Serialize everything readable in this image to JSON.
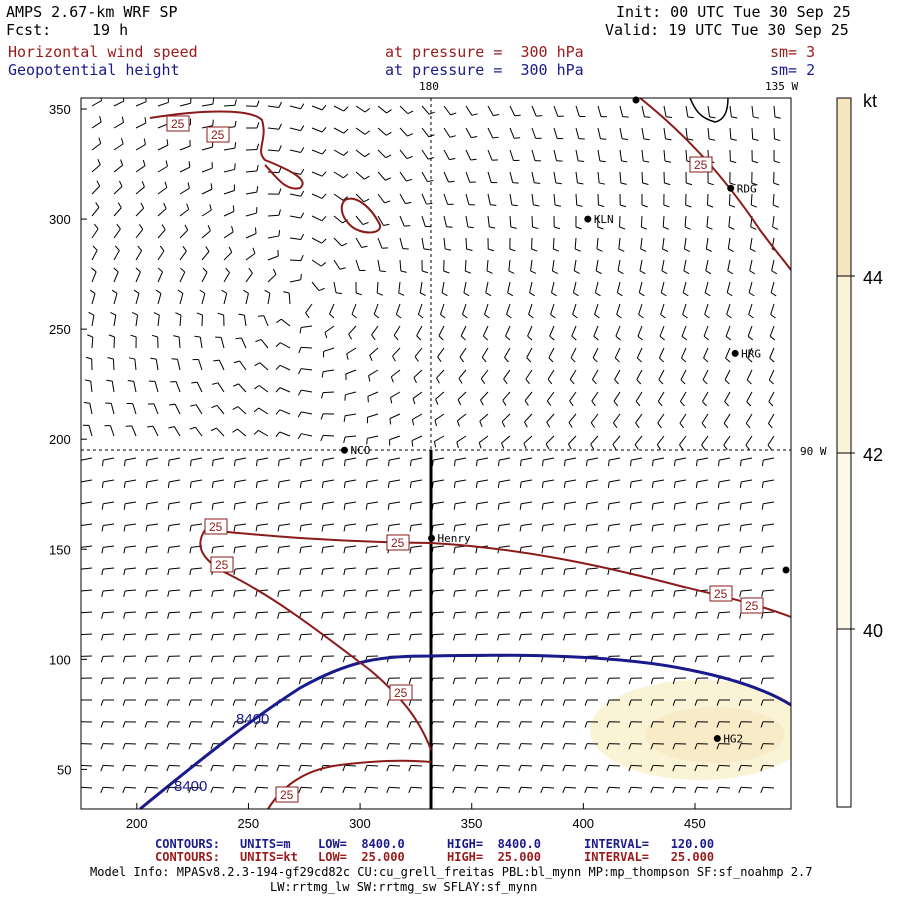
{
  "header": {
    "model": "AMPS 2.67-km WRF SP",
    "fcst_label": "Fcst:",
    "fcst_value": "19 h",
    "init": "Init: 00 UTC Tue 30 Sep 25",
    "valid": "Valid: 19 UTC Tue 30 Sep 25",
    "field1_name": "Horizontal wind speed",
    "field1_level": "at pressure =  300 hPa",
    "field1_sm": "sm= 3",
    "field2_name": "Geopotential height",
    "field2_level": "at pressure =  300 hPa",
    "field2_sm": "sm= 2"
  },
  "map": {
    "meridian_top_label": "180",
    "meridian_top_right_label": "135 W",
    "meridian_right_label": "90 W",
    "x_ticks": [
      "200",
      "250",
      "300",
      "350",
      "400",
      "450"
    ],
    "y_ticks": [
      "350",
      "300",
      "250",
      "200",
      "150",
      "100",
      "50"
    ],
    "stations": [
      {
        "name": "KLN",
        "x": 402,
        "y": 300
      },
      {
        "name": "RDG",
        "x": 466,
        "y": 314
      },
      {
        "name": "HRG",
        "x": 468,
        "y": 239
      },
      {
        "name": "NCO",
        "x": 293,
        "y": 195
      },
      {
        "name": "Henry",
        "x": 332,
        "y": 155
      },
      {
        "name": "HG2",
        "x": 460,
        "y": 64
      }
    ],
    "contour_labels_speed": [
      "25",
      "25",
      "25",
      "25",
      "25",
      "25",
      "25",
      "25",
      "25",
      "25"
    ],
    "contour_labels_height": [
      "8400",
      "8400"
    ]
  },
  "colorbar": {
    "unit": "kt",
    "levels": [
      "44",
      "42",
      "40"
    ],
    "colors": [
      "#f5e6c0",
      "#fbf3d6",
      "#ffffff"
    ]
  },
  "footer": {
    "line1": {
      "kind": "CONTOURS:",
      "units": "UNITS=m",
      "low": "LOW=  8400.0",
      "high": "HIGH=  8400.0",
      "interval": "INTERVAL=   120.00"
    },
    "line2": {
      "kind": "CONTOURS:",
      "units": "UNITS=kt",
      "low": "LOW=  25.000",
      "high": "HIGH=  25.000",
      "interval": "INTERVAL=   25.000"
    },
    "model_info_1": "Model Info: MPASv8.2.3-194-gf29cd82c CU:cu_grell_freitas PBL:bl_mynn MP:mp_thompson SF:sf_noahmp 2.7",
    "model_info_2": "LW:rrtmg_lw SW:rrtmg_sw SFLAY:sf_mynn"
  }
}
